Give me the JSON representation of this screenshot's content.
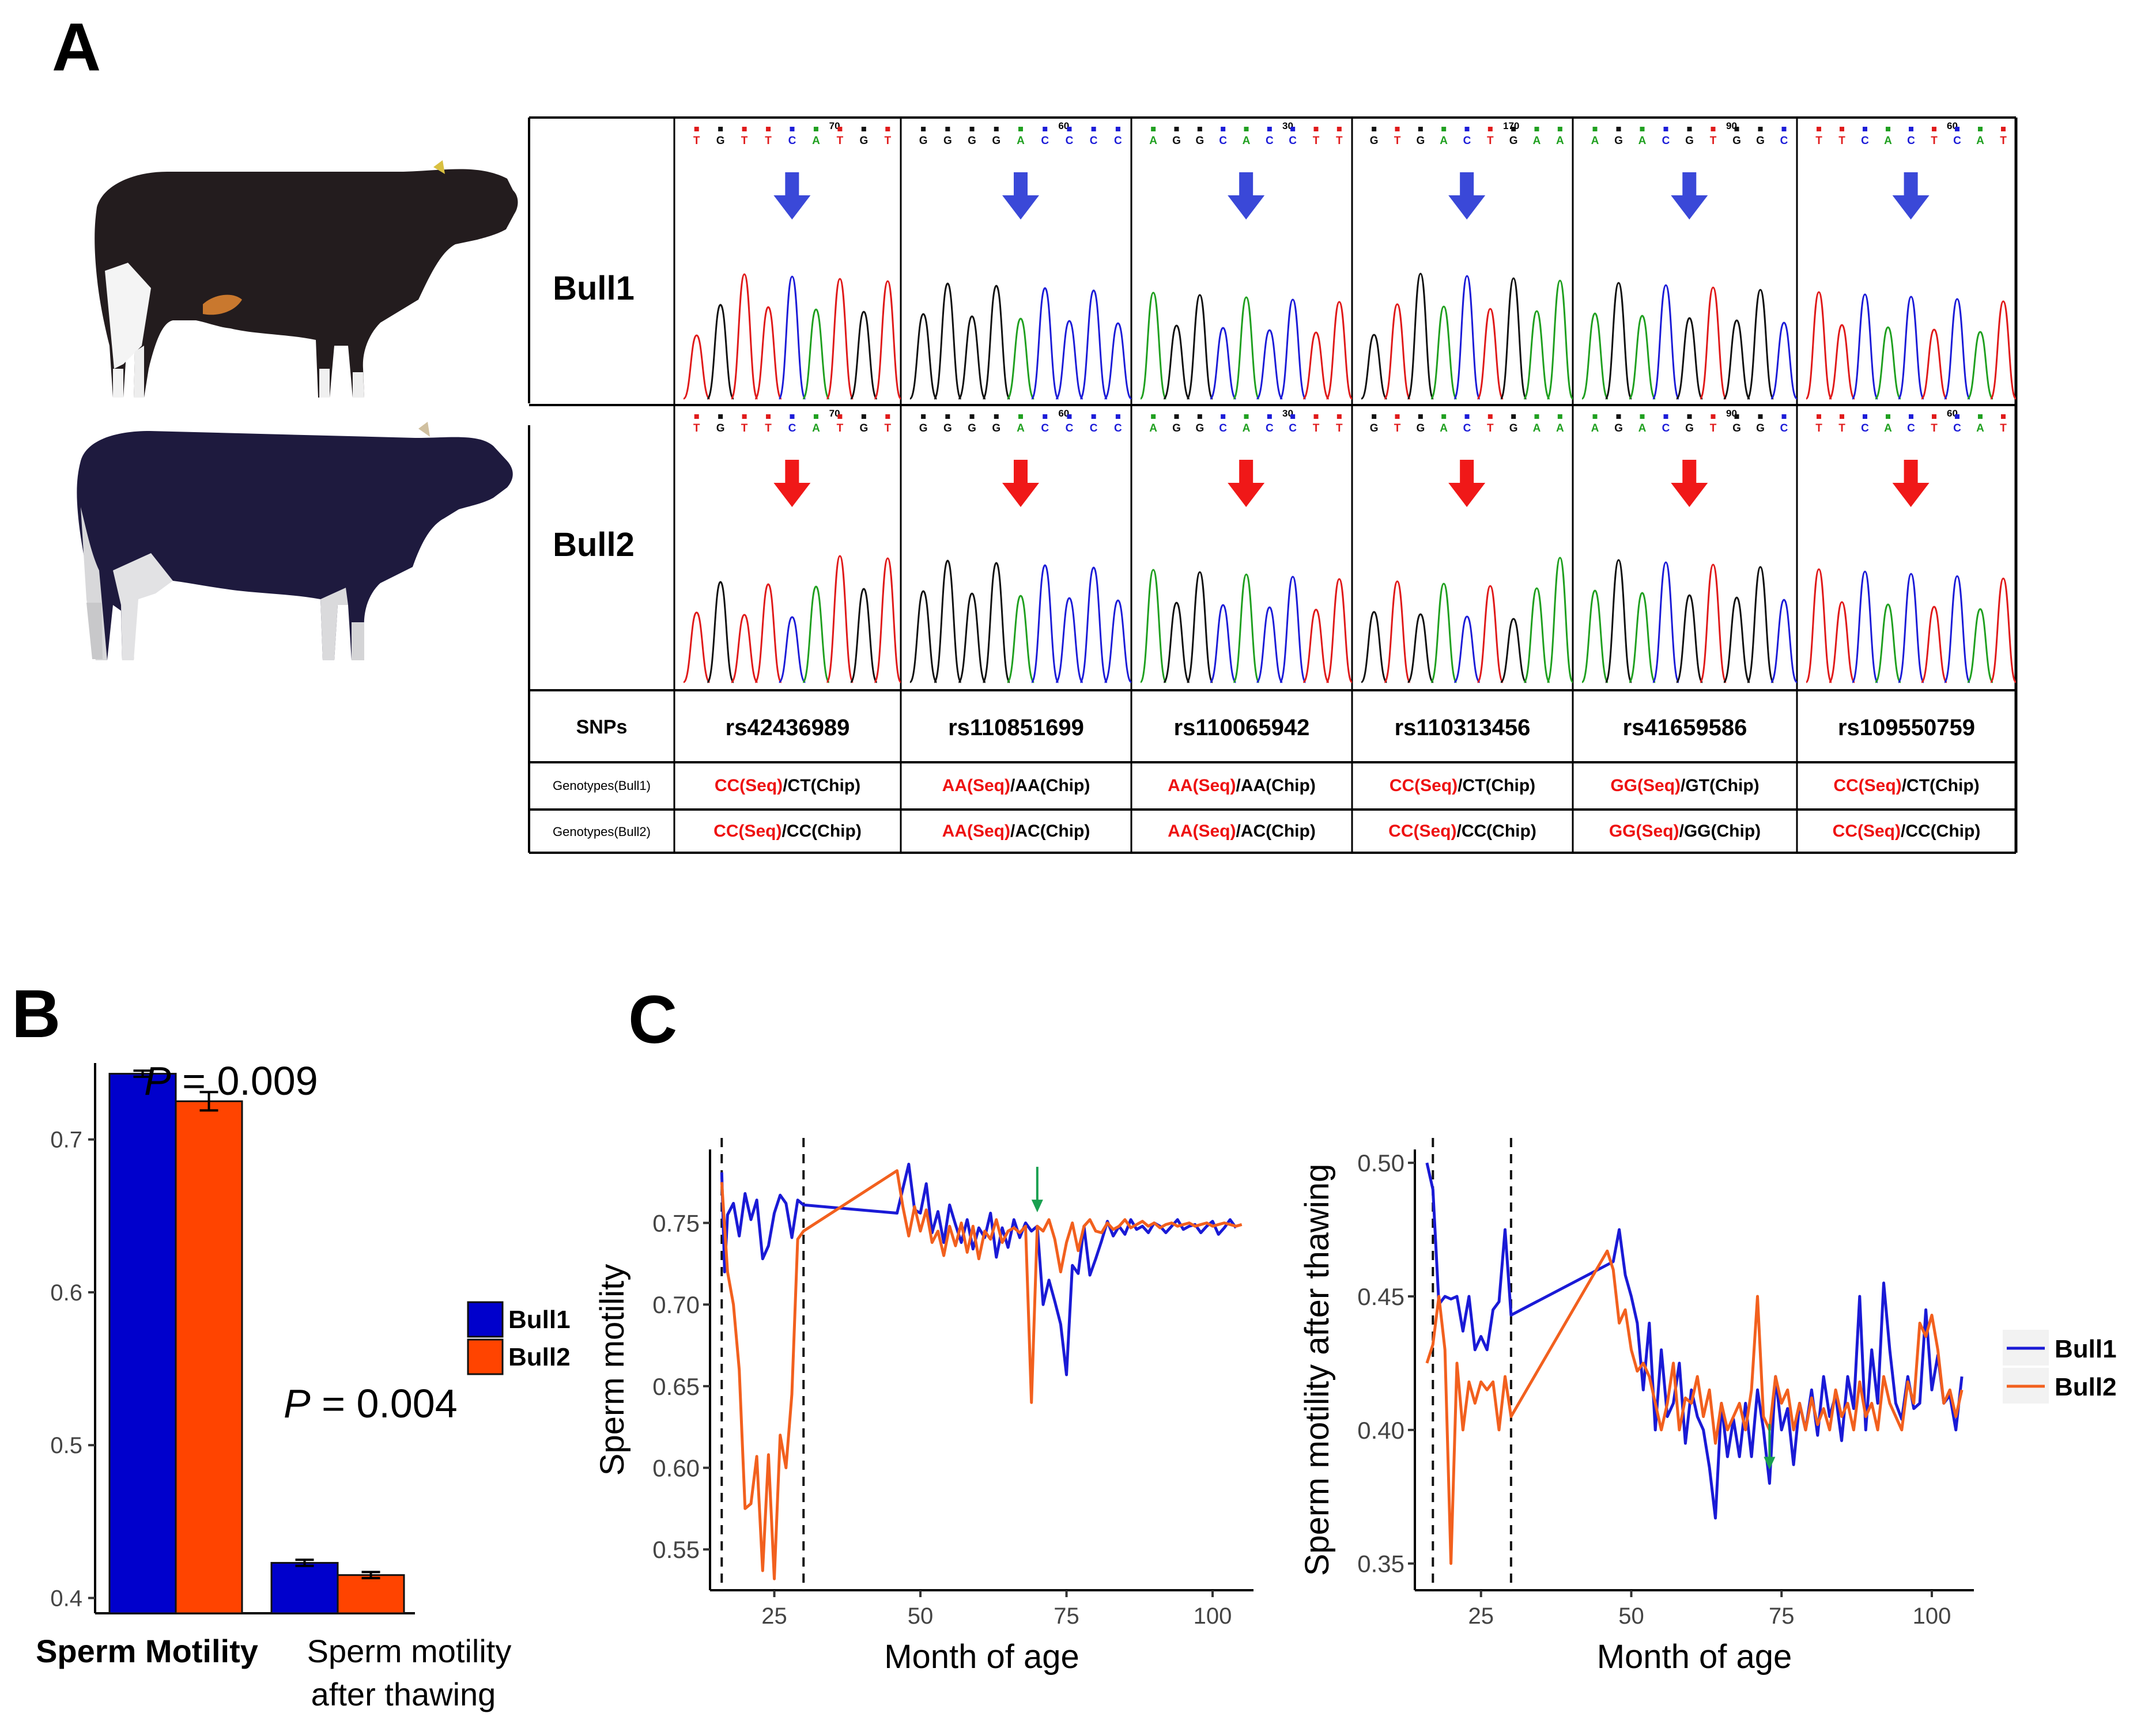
{
  "panels": {
    "a": "A",
    "b": "B",
    "c": "C"
  },
  "colors": {
    "bull1": "#0000cc",
    "bull2": "#ff4400",
    "bull1_line": "#1a1ad6",
    "bull2_line": "#f2601e",
    "seq": "#ee1111",
    "arrow_blue": "#3a48d8",
    "arrow_red": "#f01818",
    "green_arrow": "#19a050"
  },
  "bull_images": [
    {
      "name": "Bull1 photo"
    },
    {
      "name": "Bull2 photo"
    }
  ],
  "table": {
    "rows": [
      {
        "label": "Bull1",
        "arrow": "blue"
      },
      {
        "label": "Bull2",
        "arrow": "red"
      }
    ],
    "traces": [
      {
        "pos1": "70",
        "pos2": "70",
        "bases1": [
          "T",
          "G",
          "T",
          "T",
          "C",
          "A",
          "T",
          "G",
          "T"
        ],
        "bases2": [
          "T",
          "G",
          "T",
          "T",
          "C",
          "A",
          "T",
          "G",
          "T"
        ]
      },
      {
        "pos1": "60",
        "pos2": "60",
        "bases1": [
          "G",
          "G",
          "G",
          "G",
          "A",
          "C",
          "C",
          "C",
          "C"
        ],
        "bases2": [
          "G",
          "G",
          "G",
          "G",
          "A",
          "C",
          "C",
          "C",
          "C"
        ]
      },
      {
        "pos1": "30",
        "pos2": "30",
        "bases1": [
          "A",
          "G",
          "G",
          "C",
          "A",
          "C",
          "C",
          "T",
          "T"
        ],
        "bases2": [
          "A",
          "G",
          "G",
          "C",
          "A",
          "C",
          "C",
          "T",
          "T"
        ]
      },
      {
        "pos1": "170",
        "pos2": "",
        "bases1": [
          "G",
          "T",
          "G",
          "A",
          "C",
          "T",
          "G",
          "A",
          "A"
        ],
        "bases2": [
          "G",
          "T",
          "G",
          "A",
          "C",
          "T",
          "G",
          "A",
          "A"
        ]
      },
      {
        "pos1": "90",
        "pos2": "90",
        "bases1": [
          "A",
          "G",
          "A",
          "C",
          "G",
          "T",
          "G",
          "G",
          "C"
        ],
        "bases2": [
          "A",
          "G",
          "A",
          "C",
          "G",
          "T",
          "G",
          "G",
          "C"
        ]
      },
      {
        "pos1": "60",
        "pos2": "60",
        "bases1": [
          "T",
          "T",
          "C",
          "A",
          "C",
          "T",
          "C",
          "A",
          "T"
        ],
        "bases2": [
          "T",
          "T",
          "C",
          "A",
          "C",
          "T",
          "C",
          "A",
          "T"
        ]
      }
    ],
    "snps_label": "SNPs",
    "snps": [
      "rs42436989",
      "rs110851699",
      "rs110065942",
      "rs110313456",
      "rs41659586",
      "rs109550759"
    ],
    "geno_labels": [
      "Genotypes(Bull1)",
      "Genotypes(Bull2)"
    ],
    "geno_bull1": [
      {
        "seq": "CC(Seq)",
        "chip": "/CT(Chip)"
      },
      {
        "seq": "AA(Seq)",
        "chip": "/AA(Chip)"
      },
      {
        "seq": "AA(Seq)",
        "chip": "/AA(Chip)"
      },
      {
        "seq": "CC(Seq)",
        "chip": "/CT(Chip)"
      },
      {
        "seq": "GG(Seq)",
        "chip": "/GT(Chip)"
      },
      {
        "seq": "CC(Seq)",
        "chip": "/CT(Chip)"
      }
    ],
    "geno_bull2": [
      {
        "seq": "CC(Seq)",
        "chip": "/CC(Chip)"
      },
      {
        "seq": "AA(Seq)",
        "chip": "/AC(Chip)"
      },
      {
        "seq": "AA(Seq)",
        "chip": "/AC(Chip)"
      },
      {
        "seq": "CC(Seq)",
        "chip": "/CC(Chip)"
      },
      {
        "seq": "GG(Seq)",
        "chip": "/GG(Chip)"
      },
      {
        "seq": "CC(Seq)",
        "chip": "/CC(Chip)"
      }
    ]
  },
  "chart_data": [
    {
      "id": "B",
      "type": "bar",
      "categories": [
        "Sperm Motility",
        "Sperm motility\nafter thawing"
      ],
      "series": [
        {
          "name": "Bull1",
          "values": [
            0.743,
            0.423
          ],
          "errors": [
            0.002,
            0.002
          ]
        },
        {
          "name": "Bull2",
          "values": [
            0.725,
            0.415
          ],
          "errors": [
            0.006,
            0.002
          ]
        }
      ],
      "annotations": [
        {
          "italic": "P",
          "text": " = 0.009"
        },
        {
          "italic": "P",
          "text": " = 0.004"
        }
      ],
      "ylim": [
        0.39,
        0.75
      ],
      "yticks": [
        0.4,
        0.5,
        0.6,
        0.7
      ],
      "ytick_labels": [
        "0.4",
        "0.5",
        "0.6",
        "0.7"
      ],
      "legend": [
        "Bull1",
        "Bull2"
      ]
    },
    {
      "id": "C1",
      "type": "line",
      "xlabel": "Month of age",
      "ylabel": "Sperm motility",
      "xlim": [
        14,
        107
      ],
      "ylim": [
        0.525,
        0.795
      ],
      "xticks": [
        25,
        50,
        75,
        100
      ],
      "yticks": [
        0.55,
        0.6,
        0.65,
        0.7,
        0.75
      ],
      "ytick_labels": [
        "0.55",
        "0.60",
        "0.65",
        "0.70",
        "0.75"
      ],
      "vlines": [
        16,
        30
      ],
      "arrow_x": 70,
      "series": [
        {
          "name": "Bull1",
          "x": [
            16,
            16.5,
            17,
            18,
            19,
            20,
            21,
            22,
            23,
            24,
            25,
            26,
            27,
            28,
            29,
            30,
            46,
            47,
            48,
            49,
            50,
            51,
            52,
            53,
            54,
            55,
            56,
            57,
            58,
            59,
            60,
            61,
            62,
            63,
            64,
            65,
            66,
            67,
            68,
            69,
            70,
            71,
            72,
            73,
            74,
            75,
            76,
            77,
            78,
            79,
            80,
            81,
            82,
            83,
            84,
            85,
            86,
            87,
            88,
            89,
            90,
            91,
            92,
            93,
            94,
            95,
            96,
            97,
            98,
            99,
            100,
            101,
            102,
            103,
            104
          ],
          "y": [
            0.781,
            0.72,
            0.755,
            0.762,
            0.742,
            0.768,
            0.752,
            0.764,
            0.728,
            0.736,
            0.756,
            0.767,
            0.762,
            0.741,
            0.764,
            0.761,
            0.756,
            0.771,
            0.786,
            0.758,
            0.756,
            0.774,
            0.744,
            0.757,
            0.738,
            0.761,
            0.749,
            0.738,
            0.752,
            0.734,
            0.747,
            0.741,
            0.756,
            0.729,
            0.747,
            0.735,
            0.752,
            0.741,
            0.75,
            0.745,
            0.748,
            0.7,
            0.715,
            0.702,
            0.688,
            0.657,
            0.724,
            0.719,
            0.748,
            0.718,
            0.728,
            0.739,
            0.751,
            0.742,
            0.748,
            0.743,
            0.752,
            0.746,
            0.748,
            0.744,
            0.75,
            0.748,
            0.744,
            0.748,
            0.752,
            0.746,
            0.748,
            0.749,
            0.744,
            0.748,
            0.751,
            0.743,
            0.747,
            0.752,
            0.747
          ]
        },
        {
          "name": "Bull2",
          "x": [
            16,
            17,
            18,
            19,
            20,
            21,
            22,
            23,
            24,
            25,
            26,
            27,
            28,
            29,
            30,
            46,
            47,
            48,
            49,
            50,
            51,
            52,
            53,
            54,
            55,
            56,
            57,
            58,
            59,
            60,
            61,
            62,
            63,
            64,
            65,
            66,
            67,
            68,
            69,
            70,
            71,
            72,
            73,
            74,
            75,
            76,
            77,
            78,
            79,
            80,
            81,
            82,
            83,
            84,
            85,
            86,
            87,
            88,
            89,
            90,
            91,
            92,
            93,
            94,
            95,
            96,
            97,
            98,
            99,
            100,
            101,
            102,
            103,
            104,
            105
          ],
          "y": [
            0.775,
            0.72,
            0.7,
            0.66,
            0.575,
            0.578,
            0.607,
            0.537,
            0.608,
            0.532,
            0.62,
            0.6,
            0.645,
            0.74,
            0.745,
            0.782,
            0.76,
            0.742,
            0.76,
            0.745,
            0.758,
            0.738,
            0.745,
            0.73,
            0.748,
            0.736,
            0.75,
            0.732,
            0.748,
            0.728,
            0.745,
            0.74,
            0.752,
            0.738,
            0.745,
            0.747,
            0.744,
            0.748,
            0.64,
            0.748,
            0.745,
            0.752,
            0.74,
            0.72,
            0.738,
            0.75,
            0.733,
            0.748,
            0.752,
            0.745,
            0.744,
            0.75,
            0.746,
            0.748,
            0.752,
            0.747,
            0.749,
            0.751,
            0.748,
            0.75,
            0.747,
            0.749,
            0.75,
            0.748,
            0.749,
            0.75,
            0.748,
            0.749,
            0.75,
            0.748,
            0.749,
            0.75,
            0.749,
            0.748,
            0.749
          ]
        }
      ]
    },
    {
      "id": "C2",
      "type": "line",
      "xlabel": "Month of age",
      "ylabel": "Sperm motility after thawing",
      "xlim": [
        14,
        107
      ],
      "ylim": [
        0.34,
        0.505
      ],
      "xticks": [
        25,
        50,
        75,
        100
      ],
      "yticks": [
        0.35,
        0.4,
        0.45,
        0.5
      ],
      "ytick_labels": [
        "0.35",
        "0.40",
        "0.45",
        "0.50"
      ],
      "vlines": [
        17,
        30
      ],
      "arrow_x": 73,
      "series": [
        {
          "name": "Bull1",
          "x": [
            16,
            17,
            18,
            19,
            20,
            21,
            22,
            23,
            24,
            25,
            26,
            27,
            28,
            29,
            30,
            47,
            48,
            49,
            50,
            51,
            52,
            53,
            54,
            55,
            56,
            57,
            58,
            59,
            60,
            61,
            62,
            63,
            64,
            65,
            66,
            67,
            68,
            69,
            70,
            71,
            72,
            73,
            74,
            75,
            76,
            77,
            78,
            79,
            80,
            81,
            82,
            83,
            84,
            85,
            86,
            87,
            88,
            89,
            90,
            91,
            92,
            93,
            94,
            95,
            96,
            97,
            98,
            99,
            100,
            101,
            102,
            103,
            104,
            105
          ],
          "y": [
            0.5,
            0.49,
            0.447,
            0.45,
            0.449,
            0.45,
            0.437,
            0.45,
            0.43,
            0.435,
            0.43,
            0.445,
            0.448,
            0.475,
            0.443,
            0.463,
            0.475,
            0.458,
            0.45,
            0.44,
            0.415,
            0.44,
            0.4,
            0.43,
            0.405,
            0.41,
            0.425,
            0.395,
            0.415,
            0.405,
            0.4,
            0.386,
            0.367,
            0.41,
            0.39,
            0.404,
            0.39,
            0.41,
            0.39,
            0.415,
            0.4,
            0.38,
            0.42,
            0.4,
            0.408,
            0.387,
            0.41,
            0.4,
            0.415,
            0.398,
            0.42,
            0.405,
            0.413,
            0.396,
            0.42,
            0.408,
            0.45,
            0.4,
            0.43,
            0.41,
            0.455,
            0.43,
            0.41,
            0.404,
            0.42,
            0.408,
            0.41,
            0.445,
            0.415,
            0.428,
            0.41,
            0.413,
            0.4,
            0.42
          ]
        },
        {
          "name": "Bull2",
          "x": [
            16,
            17,
            18,
            19,
            20,
            21,
            22,
            23,
            24,
            25,
            26,
            27,
            28,
            29,
            30,
            46,
            47,
            48,
            49,
            50,
            51,
            52,
            53,
            54,
            55,
            56,
            57,
            58,
            59,
            60,
            61,
            62,
            63,
            64,
            65,
            66,
            67,
            68,
            69,
            70,
            71,
            72,
            73,
            74,
            75,
            76,
            77,
            78,
            79,
            80,
            81,
            82,
            83,
            84,
            85,
            86,
            87,
            88,
            89,
            90,
            91,
            92,
            93,
            94,
            95,
            96,
            97,
            98,
            99,
            100,
            101,
            102,
            103,
            104,
            105
          ],
          "y": [
            0.425,
            0.432,
            0.45,
            0.43,
            0.35,
            0.425,
            0.4,
            0.418,
            0.41,
            0.418,
            0.415,
            0.418,
            0.4,
            0.42,
            0.405,
            0.467,
            0.46,
            0.44,
            0.445,
            0.43,
            0.422,
            0.425,
            0.42,
            0.41,
            0.4,
            0.41,
            0.425,
            0.4,
            0.412,
            0.41,
            0.42,
            0.405,
            0.415,
            0.395,
            0.41,
            0.4,
            0.405,
            0.41,
            0.4,
            0.415,
            0.45,
            0.405,
            0.4,
            0.42,
            0.41,
            0.415,
            0.4,
            0.41,
            0.4,
            0.412,
            0.402,
            0.408,
            0.4,
            0.415,
            0.405,
            0.41,
            0.4,
            0.418,
            0.405,
            0.41,
            0.4,
            0.42,
            0.41,
            0.405,
            0.4,
            0.418,
            0.41,
            0.44,
            0.435,
            0.443,
            0.43,
            0.41,
            0.415,
            0.405,
            0.415
          ]
        }
      ],
      "legend": [
        "Bull1",
        "Bull2"
      ]
    }
  ]
}
